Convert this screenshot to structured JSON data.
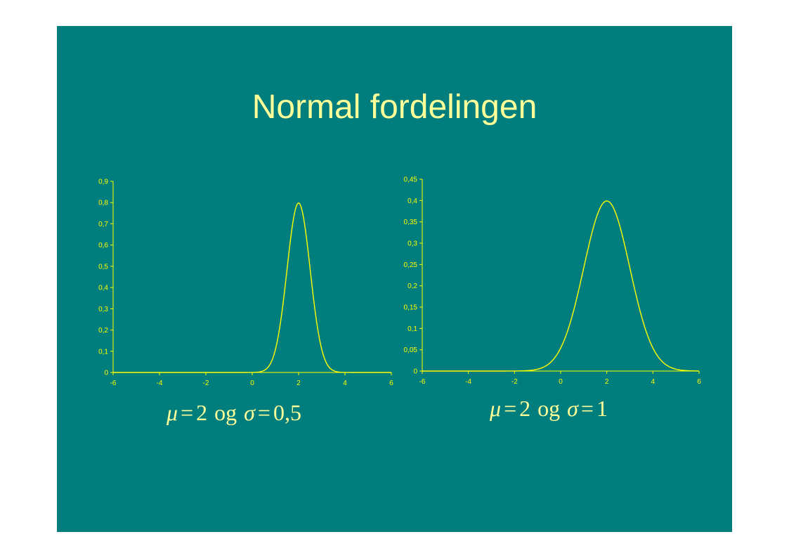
{
  "slide": {
    "title": "Normal fordelingen",
    "background": "#007d7d",
    "text_color": "#ffff99",
    "curve_color": "#ffff00"
  },
  "formulas": [
    {
      "mu_symbol": "μ",
      "eq1": "=",
      "mu_value": "2",
      "word": "og",
      "sigma_symbol": "σ",
      "eq2": "=",
      "sigma_value": "0,5"
    },
    {
      "mu_symbol": "μ",
      "eq1": "=",
      "mu_value": "2",
      "word": "og",
      "sigma_symbol": "σ",
      "eq2": "=",
      "sigma_value": "1"
    }
  ],
  "chart_data": [
    {
      "type": "line",
      "series": [
        {
          "distribution": "normal",
          "mu": 2,
          "sigma": 0.5
        }
      ],
      "xlim": [
        -6,
        6
      ],
      "ylim": [
        0,
        0.9
      ],
      "xticks": [
        "-6",
        "-4",
        "-2",
        "0",
        "2",
        "4",
        "6"
      ],
      "yticks": [
        "0",
        "0,1",
        "0,2",
        "0,3",
        "0,4",
        "0,5",
        "0,6",
        "0,7",
        "0,8",
        "0,9"
      ],
      "grid": false,
      "legend": "none"
    },
    {
      "type": "line",
      "series": [
        {
          "distribution": "normal",
          "mu": 2,
          "sigma": 1
        }
      ],
      "xlim": [
        -6,
        6
      ],
      "ylim": [
        0,
        0.45
      ],
      "xticks": [
        "-6",
        "-4",
        "-2",
        "0",
        "2",
        "4",
        "6"
      ],
      "yticks": [
        "0",
        "0,05",
        "0,1",
        "0,15",
        "0,2",
        "0,25",
        "0,3",
        "0,35",
        "0,4",
        "0,45"
      ],
      "grid": false,
      "legend": "none"
    }
  ]
}
